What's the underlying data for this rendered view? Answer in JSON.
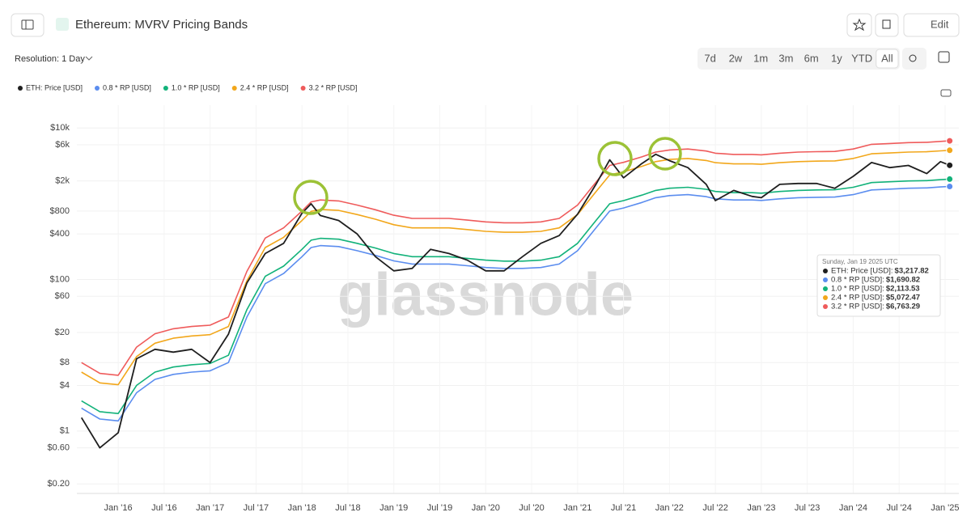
{
  "toolbar": {
    "title": "Ethereum: MVRV Pricing Bands",
    "edit": "Edit",
    "resolution": "Resolution: 1 Day",
    "ranges": [
      "7d",
      "2w",
      "1m",
      "3m",
      "6m",
      "1y",
      "YTD",
      "All"
    ],
    "active_range": "All",
    "watermark": "glassnode"
  },
  "chart_data": {
    "type": "line",
    "log_scale": true,
    "legend": "top-left",
    "grid": true,
    "x": [
      2015.6,
      2015.8,
      2016.0,
      2016.2,
      2016.4,
      2016.6,
      2016.8,
      2017.0,
      2017.2,
      2017.4,
      2017.6,
      2017.8,
      2018.0,
      2018.1,
      2018.2,
      2018.4,
      2018.6,
      2018.8,
      2019.0,
      2019.2,
      2019.4,
      2019.6,
      2019.8,
      2020.0,
      2020.2,
      2020.4,
      2020.6,
      2020.8,
      2021.0,
      2021.2,
      2021.35,
      2021.5,
      2021.7,
      2021.85,
      2022.0,
      2022.2,
      2022.4,
      2022.5,
      2022.7,
      2022.9,
      2023.0,
      2023.2,
      2023.4,
      2023.6,
      2023.8,
      2024.0,
      2024.2,
      2024.4,
      2024.6,
      2024.8,
      2024.95,
      2025.05
    ],
    "xlim": [
      2015.55,
      2025.15
    ],
    "xticks": [
      {
        "value": 2016,
        "label": "Jan '16"
      },
      {
        "value": 2016.5,
        "label": "Jul '16"
      },
      {
        "value": 2017,
        "label": "Jan '17"
      },
      {
        "value": 2017.5,
        "label": "Jul '17"
      },
      {
        "value": 2018,
        "label": "Jan '18"
      },
      {
        "value": 2018.5,
        "label": "Jul '18"
      },
      {
        "value": 2019,
        "label": "Jan '19"
      },
      {
        "value": 2019.5,
        "label": "Jul '19"
      },
      {
        "value": 2020,
        "label": "Jan '20"
      },
      {
        "value": 2020.5,
        "label": "Jul '20"
      },
      {
        "value": 2021,
        "label": "Jan '21"
      },
      {
        "value": 2021.5,
        "label": "Jul '21"
      },
      {
        "value": 2022,
        "label": "Jan '22"
      },
      {
        "value": 2022.5,
        "label": "Jul '22"
      },
      {
        "value": 2023,
        "label": "Jan '23"
      },
      {
        "value": 2023.5,
        "label": "Jul '23"
      },
      {
        "value": 2024,
        "label": "Jan '24"
      },
      {
        "value": 2024.5,
        "label": "Jul '24"
      },
      {
        "value": 2025,
        "label": "Jan '25"
      }
    ],
    "ylim": [
      0.15,
      20000
    ],
    "yticks": [
      {
        "value": 0.2,
        "label": "$0.20"
      },
      {
        "value": 0.6,
        "label": "$0.60"
      },
      {
        "value": 1,
        "label": "$1"
      },
      {
        "value": 4,
        "label": "$4"
      },
      {
        "value": 8,
        "label": "$8"
      },
      {
        "value": 20,
        "label": "$20"
      },
      {
        "value": 60,
        "label": "$60"
      },
      {
        "value": 100,
        "label": "$100"
      },
      {
        "value": 400,
        "label": "$400"
      },
      {
        "value": 800,
        "label": "$800"
      },
      {
        "value": 2000,
        "label": "$2k"
      },
      {
        "value": 6000,
        "label": "$6k"
      },
      {
        "value": 10000,
        "label": "$10k"
      }
    ],
    "series": [
      {
        "name": "ETH: Price [USD]",
        "color": "#1f1f1f",
        "values": [
          1.5,
          0.6,
          0.95,
          9,
          12,
          11,
          12,
          8,
          19,
          90,
          220,
          300,
          750,
          1000,
          700,
          600,
          400,
          200,
          130,
          140,
          250,
          220,
          180,
          130,
          130,
          200,
          300,
          380,
          730,
          1800,
          3800,
          2200,
          3400,
          4500,
          3700,
          3000,
          1800,
          1100,
          1500,
          1250,
          1200,
          1800,
          1850,
          1850,
          1600,
          2300,
          3500,
          3000,
          3200,
          2500,
          3600,
          3217.82
        ]
      },
      {
        "name": "0.8 * RP [USD]",
        "color": "#5b8def",
        "values": [
          2,
          1.44,
          1.36,
          3.2,
          4.8,
          5.6,
          6,
          6.24,
          8,
          32,
          88,
          120,
          200,
          264,
          280,
          272,
          240,
          208,
          176,
          160,
          160,
          160,
          152,
          144,
          140,
          140,
          144,
          160,
          240,
          480,
          800,
          880,
          1040,
          1200,
          1280,
          1320,
          1240,
          1160,
          1120,
          1120,
          1104,
          1160,
          1200,
          1216,
          1224,
          1320,
          1520,
          1560,
          1600,
          1616,
          1664,
          1690.82
        ]
      },
      {
        "name": "1.0 * RP [USD]",
        "color": "#12b27a",
        "values": [
          2.5,
          1.8,
          1.7,
          4,
          6,
          7,
          7.5,
          7.8,
          10,
          40,
          110,
          150,
          250,
          330,
          350,
          340,
          300,
          260,
          220,
          200,
          200,
          200,
          190,
          180,
          175,
          175,
          180,
          200,
          300,
          600,
          1000,
          1100,
          1300,
          1500,
          1600,
          1650,
          1550,
          1450,
          1400,
          1400,
          1380,
          1450,
          1500,
          1520,
          1530,
          1650,
          1900,
          1950,
          2000,
          2020,
          2080,
          2113.53
        ]
      },
      {
        "name": "2.4 * RP [USD]",
        "color": "#f2a71b",
        "values": [
          6,
          4.32,
          4.08,
          9.6,
          14.4,
          16.8,
          18,
          18.72,
          24,
          96,
          264,
          360,
          600,
          792,
          840,
          816,
          720,
          624,
          528,
          480,
          480,
          480,
          456,
          432,
          420,
          420,
          432,
          480,
          720,
          1440,
          2400,
          2640,
          3120,
          3600,
          3840,
          3960,
          3720,
          3480,
          3360,
          3360,
          3312,
          3480,
          3600,
          3648,
          3672,
          3960,
          4560,
          4680,
          4800,
          4848,
          4992,
          5072.47
        ]
      },
      {
        "name": "3.2 * RP [USD]",
        "color": "#ef5b5b",
        "values": [
          8,
          5.76,
          5.44,
          12.8,
          19.2,
          22.4,
          24,
          24.96,
          32,
          128,
          352,
          480,
          800,
          1056,
          1120,
          1088,
          960,
          832,
          704,
          640,
          640,
          640,
          608,
          576,
          560,
          560,
          576,
          640,
          960,
          1920,
          3200,
          3520,
          4160,
          4800,
          5120,
          5280,
          4960,
          4640,
          4480,
          4480,
          4416,
          4640,
          4800,
          4864,
          4896,
          5280,
          6080,
          6240,
          6400,
          6464,
          6656,
          6763.29
        ]
      }
    ],
    "tooltip": {
      "date": "Sunday, Jan 19 2025 UTC",
      "labels": [
        "ETH: Price [USD]:",
        "0.8 * RP [USD]:",
        "1.0 * RP [USD]:",
        "2.4 * RP [USD]:",
        "3.2 * RP [USD]:"
      ],
      "value_labels": [
        "$3,217.82",
        "$1,690.82",
        "$2,113.53",
        "$5,072.47",
        "$6,763.29"
      ]
    }
  }
}
